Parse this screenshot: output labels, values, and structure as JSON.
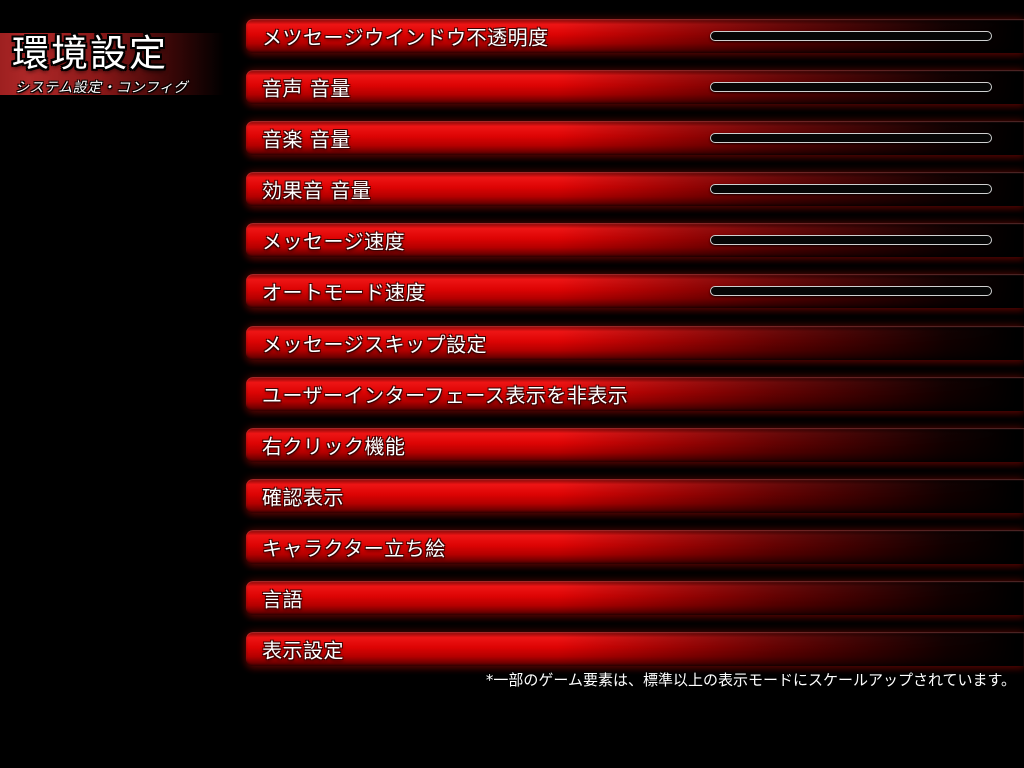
{
  "header": {
    "title": "環境設定",
    "subtitle": "システム設定・コンフィグ"
  },
  "settings": [
    {
      "label": "メツセージウインドウ不透明度",
      "slider": true
    },
    {
      "label": "音声 音量",
      "slider": true
    },
    {
      "label": "音楽 音量",
      "slider": true
    },
    {
      "label": "効果音 音量",
      "slider": true
    },
    {
      "label": "メッセージ速度",
      "slider": true
    },
    {
      "label": "オートモード速度",
      "slider": true
    },
    {
      "label": "メッセージスキップ設定",
      "slider": false
    },
    {
      "label": "ユーザーインターフェース表示を非表示",
      "slider": false
    },
    {
      "label": "右クリック機能",
      "slider": false
    },
    {
      "label": "確認表示",
      "slider": false
    },
    {
      "label": "キャラクター立ち絵",
      "slider": false
    },
    {
      "label": "言語",
      "slider": false
    },
    {
      "label": "表示設定",
      "slider": false
    }
  ],
  "footnote": "*一部のゲーム要素は、標準以上の表示モードにスケールアップされています。",
  "colors": {
    "background": "#000000",
    "bar_red": "#dd0404",
    "banner_red": "#ae2828",
    "slider_border": "#cfcfcf",
    "text": "#ffffff"
  }
}
